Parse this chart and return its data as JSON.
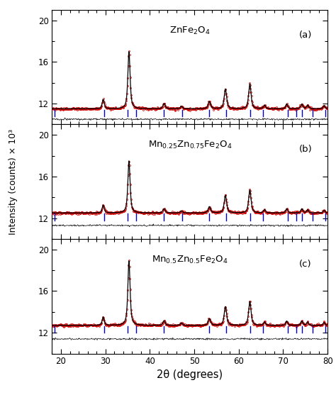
{
  "xlim": [
    18,
    80
  ],
  "ylim": [
    10.0,
    21.0
  ],
  "yticks": [
    12,
    16,
    20
  ],
  "xticks": [
    20,
    30,
    40,
    50,
    60,
    70,
    80
  ],
  "xlabel": "2θ (degrees)",
  "ylabel": "Intensity (counts) × 10³",
  "panels": [
    {
      "label": "(a)",
      "formula_main": "ZnFe",
      "formula_sub1": "2",
      "formula_rest": "O",
      "formula_sub2": "4",
      "formula_text": "ZnFe$_2$O$_4$",
      "baseline": 11.5,
      "residual_level": 10.5,
      "peak_centers": [
        29.5,
        35.3,
        43.2,
        47.1,
        53.4,
        57.0,
        62.5,
        65.8,
        70.8,
        74.2,
        75.5,
        79.2
      ],
      "peak_heights": [
        0.9,
        5.5,
        0.5,
        0.25,
        0.7,
        1.9,
        2.4,
        0.35,
        0.45,
        0.45,
        0.35,
        0.3
      ],
      "peak_widths": [
        0.55,
        0.6,
        0.6,
        0.55,
        0.65,
        0.65,
        0.65,
        0.55,
        0.55,
        0.55,
        0.5,
        0.5
      ],
      "tick_positions": [
        18.5,
        29.8,
        35.0,
        36.9,
        43.2,
        47.2,
        53.4,
        57.1,
        62.6,
        65.5,
        71.0,
        73.0,
        74.2,
        76.6,
        79.5
      ]
    },
    {
      "label": "(b)",
      "formula_text": "Mn$_{0.25}$Zn$_{0.75}$Fe$_2$O$_4$",
      "baseline": 12.5,
      "residual_level": 11.3,
      "peak_centers": [
        29.5,
        35.3,
        43.2,
        47.1,
        53.4,
        57.0,
        62.5,
        65.8,
        70.8,
        74.2,
        75.5,
        79.2
      ],
      "peak_heights": [
        0.75,
        5.0,
        0.4,
        0.2,
        0.6,
        1.7,
        2.2,
        0.3,
        0.4,
        0.4,
        0.3,
        0.25
      ],
      "peak_widths": [
        0.55,
        0.6,
        0.6,
        0.55,
        0.65,
        0.65,
        0.65,
        0.55,
        0.55,
        0.55,
        0.5,
        0.5
      ],
      "tick_positions": [
        18.5,
        29.8,
        35.0,
        36.9,
        43.2,
        47.2,
        53.4,
        57.1,
        62.6,
        65.5,
        71.0,
        73.0,
        74.2,
        76.6,
        79.5
      ]
    },
    {
      "label": "(c)",
      "formula_text": "Mn$_{0.5}$Zn$_{0.5}$Fe$_2$O$_4$",
      "baseline": 12.7,
      "residual_level": 11.4,
      "peak_centers": [
        29.5,
        35.3,
        43.2,
        47.1,
        53.4,
        57.0,
        62.5,
        65.8,
        70.8,
        74.2,
        75.5,
        79.2
      ],
      "peak_heights": [
        0.8,
        6.2,
        0.45,
        0.22,
        0.65,
        1.8,
        2.3,
        0.32,
        0.42,
        0.42,
        0.32,
        0.28
      ],
      "peak_widths": [
        0.55,
        0.6,
        0.6,
        0.55,
        0.65,
        0.65,
        0.65,
        0.55,
        0.55,
        0.55,
        0.5,
        0.5
      ],
      "tick_positions": [
        18.5,
        29.8,
        35.0,
        36.9,
        43.2,
        53.4,
        57.1,
        62.6,
        65.5,
        71.0,
        73.0,
        74.2,
        76.6,
        79.5
      ]
    }
  ],
  "data_color": "#cc0000",
  "fit_color": "#000000",
  "tick_color": "#0000bb",
  "residual_color": "#000000",
  "background_color": "#ffffff"
}
